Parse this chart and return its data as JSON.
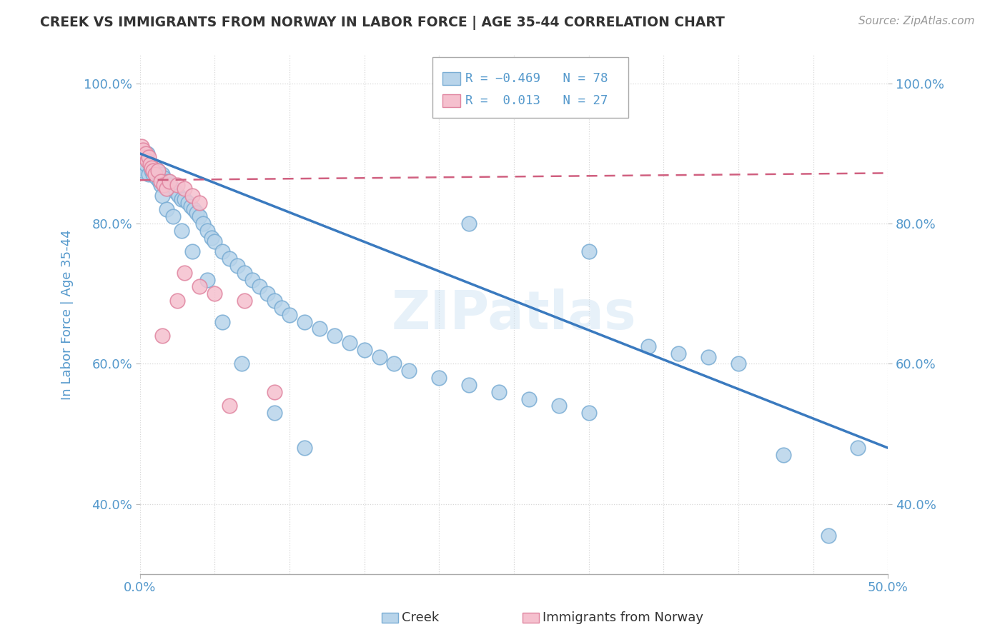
{
  "title": "CREEK VS IMMIGRANTS FROM NORWAY IN LABOR FORCE | AGE 35-44 CORRELATION CHART",
  "source": "Source: ZipAtlas.com",
  "ylabel": "In Labor Force | Age 35-44",
  "xlim": [
    0.0,
    0.5
  ],
  "ylim": [
    0.3,
    1.04
  ],
  "blue_R": -0.469,
  "blue_N": 78,
  "pink_R": 0.013,
  "pink_N": 27,
  "creek_scatter_x": [
    0.001,
    0.002,
    0.003,
    0.004,
    0.005,
    0.006,
    0.007,
    0.008,
    0.009,
    0.01,
    0.011,
    0.012,
    0.013,
    0.014,
    0.015,
    0.016,
    0.017,
    0.018,
    0.019,
    0.02,
    0.022,
    0.024,
    0.026,
    0.028,
    0.03,
    0.032,
    0.034,
    0.036,
    0.038,
    0.04,
    0.042,
    0.045,
    0.048,
    0.05,
    0.055,
    0.06,
    0.065,
    0.07,
    0.075,
    0.08,
    0.085,
    0.09,
    0.095,
    0.1,
    0.11,
    0.12,
    0.13,
    0.14,
    0.15,
    0.16,
    0.17,
    0.18,
    0.2,
    0.22,
    0.24,
    0.26,
    0.28,
    0.3,
    0.22,
    0.3,
    0.34,
    0.36,
    0.38,
    0.4,
    0.43,
    0.46,
    0.48,
    0.015,
    0.018,
    0.022,
    0.028,
    0.035,
    0.045,
    0.055,
    0.068,
    0.09,
    0.11
  ],
  "creek_scatter_y": [
    0.88,
    0.875,
    0.895,
    0.885,
    0.9,
    0.87,
    0.885,
    0.875,
    0.87,
    0.88,
    0.865,
    0.875,
    0.86,
    0.855,
    0.87,
    0.865,
    0.855,
    0.85,
    0.86,
    0.855,
    0.85,
    0.845,
    0.84,
    0.835,
    0.835,
    0.83,
    0.825,
    0.82,
    0.815,
    0.81,
    0.8,
    0.79,
    0.78,
    0.775,
    0.76,
    0.75,
    0.74,
    0.73,
    0.72,
    0.71,
    0.7,
    0.69,
    0.68,
    0.67,
    0.66,
    0.65,
    0.64,
    0.63,
    0.62,
    0.61,
    0.6,
    0.59,
    0.58,
    0.57,
    0.56,
    0.55,
    0.54,
    0.53,
    0.8,
    0.76,
    0.625,
    0.615,
    0.61,
    0.6,
    0.47,
    0.355,
    0.48,
    0.84,
    0.82,
    0.81,
    0.79,
    0.76,
    0.72,
    0.66,
    0.6,
    0.53,
    0.48
  ],
  "norway_scatter_x": [
    0.001,
    0.002,
    0.003,
    0.004,
    0.005,
    0.006,
    0.007,
    0.008,
    0.009,
    0.01,
    0.012,
    0.014,
    0.016,
    0.018,
    0.02,
    0.025,
    0.03,
    0.035,
    0.04,
    0.05,
    0.06,
    0.07,
    0.09,
    0.03,
    0.04,
    0.025,
    0.015
  ],
  "norway_scatter_y": [
    0.91,
    0.905,
    0.895,
    0.9,
    0.89,
    0.895,
    0.885,
    0.88,
    0.875,
    0.87,
    0.875,
    0.86,
    0.855,
    0.85,
    0.86,
    0.855,
    0.85,
    0.84,
    0.83,
    0.7,
    0.54,
    0.69,
    0.56,
    0.73,
    0.71,
    0.69,
    0.64
  ],
  "blue_line_x": [
    0.0,
    0.5
  ],
  "blue_line_y": [
    0.9,
    0.48
  ],
  "pink_line_x": [
    0.0,
    0.5
  ],
  "pink_line_y": [
    0.862,
    0.872
  ],
  "watermark": "ZIPatlas",
  "blue_color": "#b8d4ea",
  "blue_edge": "#7aadd4",
  "pink_color": "#f5c0ce",
  "pink_edge": "#e085a0",
  "blue_trend": "#3a7abf",
  "pink_trend": "#d06080",
  "grid_color": "#d8d8d8",
  "title_color": "#333333",
  "tick_color": "#5599cc",
  "ytick_labels": [
    "40.0%",
    "60.0%",
    "80.0%",
    "100.0%"
  ],
  "ytick_vals": [
    0.4,
    0.6,
    0.8,
    1.0
  ],
  "xtick_labels": [
    "0.0%",
    "50.0%"
  ],
  "xtick_vals": [
    0.0,
    0.5
  ],
  "legend_blue_R": "R = -0.469",
  "legend_blue_N": "N = 78",
  "legend_pink_R": "R =  0.013",
  "legend_pink_N": "N = 27"
}
